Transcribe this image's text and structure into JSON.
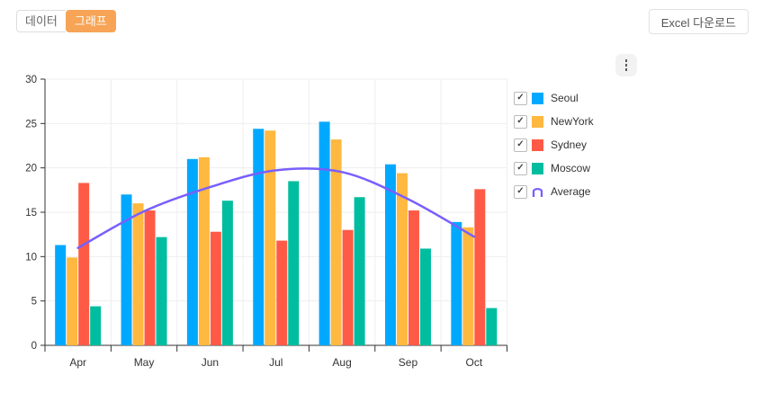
{
  "tabs": [
    {
      "label": "데이터",
      "active": false
    },
    {
      "label": "그래프",
      "active": true
    }
  ],
  "toolbar": {
    "excel_button_label": "Excel 다운로드"
  },
  "chart_menu": {
    "icon": "kebab-menu-icon"
  },
  "legend": {
    "position": "right",
    "items": [
      {
        "label": "Seoul",
        "color": "#00a9ff",
        "checked": true,
        "marker": "square"
      },
      {
        "label": "NewYork",
        "color": "#ffb840",
        "checked": true,
        "marker": "square"
      },
      {
        "label": "Sydney",
        "color": "#ff5a46",
        "checked": true,
        "marker": "square"
      },
      {
        "label": "Moscow",
        "color": "#00bd9f",
        "checked": true,
        "marker": "square"
      },
      {
        "label": "Average",
        "color": "#785fff",
        "checked": true,
        "marker": "line"
      }
    ]
  },
  "chart_data": {
    "type": "bar",
    "subtype": "column-line-combo",
    "title": "",
    "xlabel": "",
    "ylabel": "",
    "categories": [
      "Apr",
      "May",
      "Jun",
      "Jul",
      "Aug",
      "Sep",
      "Oct"
    ],
    "series": [
      {
        "name": "Seoul",
        "kind": "column",
        "color": "#00a9ff",
        "values": [
          11.3,
          17.0,
          21.0,
          24.4,
          25.2,
          20.4,
          13.9
        ]
      },
      {
        "name": "NewYork",
        "kind": "column",
        "color": "#ffb840",
        "values": [
          9.9,
          16.0,
          21.2,
          24.2,
          23.2,
          19.4,
          13.3
        ]
      },
      {
        "name": "Sydney",
        "kind": "column",
        "color": "#ff5a46",
        "values": [
          18.3,
          15.2,
          12.8,
          11.8,
          13.0,
          15.2,
          17.6
        ]
      },
      {
        "name": "Moscow",
        "kind": "column",
        "color": "#00bd9f",
        "values": [
          4.4,
          12.2,
          16.3,
          18.5,
          16.7,
          10.9,
          4.2
        ]
      },
      {
        "name": "Average",
        "kind": "line",
        "color": "#785fff",
        "values": [
          10.98,
          15.1,
          17.83,
          19.73,
          19.53,
          16.48,
          12.25
        ]
      }
    ],
    "ylim": [
      0,
      30
    ],
    "yticks": [
      0,
      5,
      10,
      15,
      20,
      25,
      30
    ],
    "grid": true,
    "legend_position": "right"
  },
  "colors": {
    "accent_orange": "#f7a456",
    "axis": "#333333",
    "grid": "#eeeeee",
    "kebab_bg": "#f2f2f2"
  }
}
